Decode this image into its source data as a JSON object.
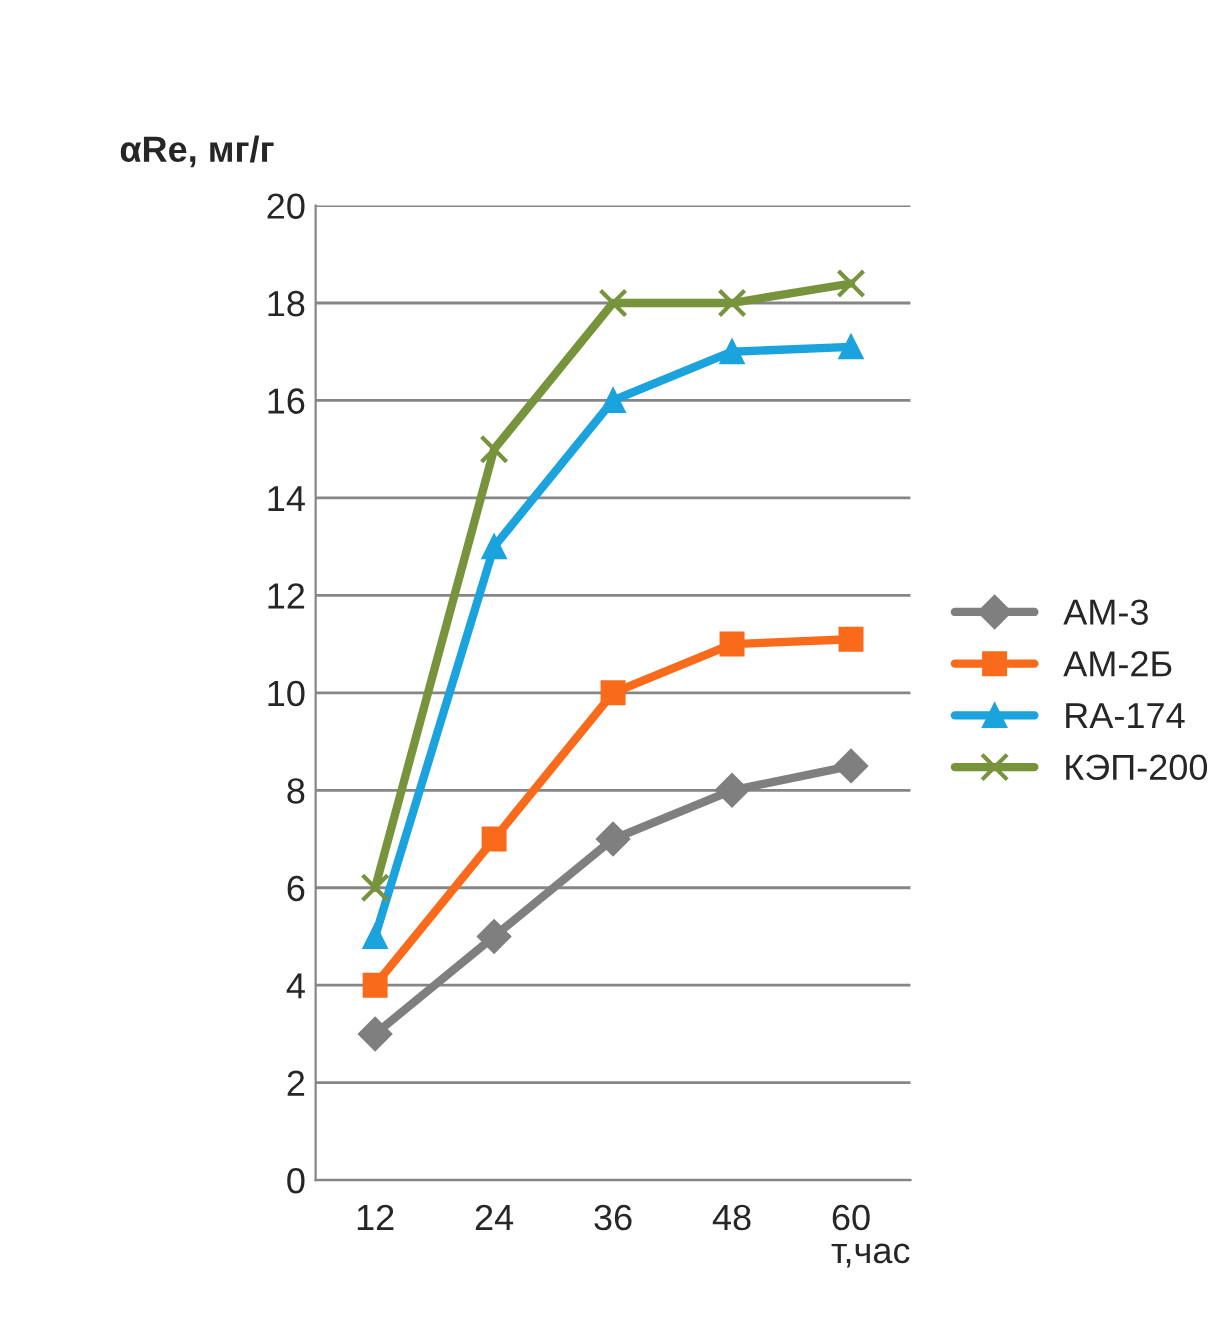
{
  "chart_data": {
    "type": "line",
    "ylabel": "αRe, мг/г",
    "xlabel": "т,час",
    "categories": [
      "12",
      "24",
      "36",
      "48",
      "60"
    ],
    "series": [
      {
        "name": "AM-3",
        "color": "#7f7f7f",
        "marker": "diamond",
        "values": [
          3,
          5,
          7,
          8,
          8.5
        ]
      },
      {
        "name": "AM-2Б",
        "color": "#f96a1b",
        "marker": "square",
        "values": [
          4,
          7,
          10,
          11,
          11.1
        ]
      },
      {
        "name": "RA-174",
        "color": "#1aa3dc",
        "marker": "triangle",
        "values": [
          5,
          13,
          16,
          17,
          17.1
        ]
      },
      {
        "name": "КЭП-200",
        "color": "#77933c",
        "marker": "cross",
        "values": [
          6,
          15,
          18,
          18,
          18.4
        ]
      }
    ],
    "ylim": [
      0,
      20
    ],
    "yticks": [
      0,
      2,
      4,
      6,
      8,
      10,
      12,
      14,
      16,
      18,
      20
    ],
    "grid": "y",
    "legend": "right",
    "line_style": "solid"
  }
}
